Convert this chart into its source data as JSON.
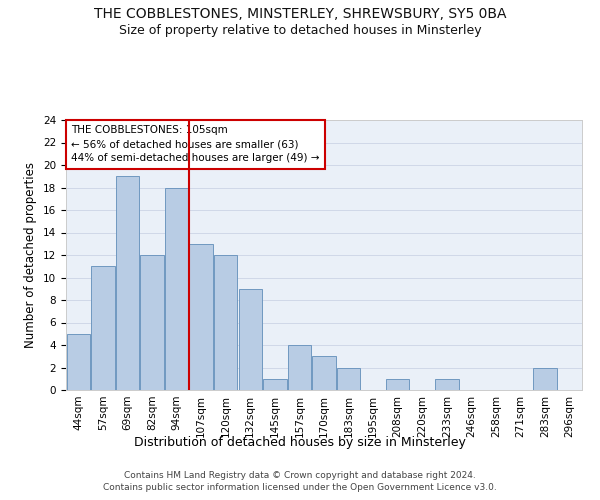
{
  "title": "THE COBBLESTONES, MINSTERLEY, SHREWSBURY, SY5 0BA",
  "subtitle": "Size of property relative to detached houses in Minsterley",
  "xlabel": "Distribution of detached houses by size in Minsterley",
  "ylabel": "Number of detached properties",
  "categories": [
    "44sqm",
    "57sqm",
    "69sqm",
    "82sqm",
    "94sqm",
    "107sqm",
    "120sqm",
    "132sqm",
    "145sqm",
    "157sqm",
    "170sqm",
    "183sqm",
    "195sqm",
    "208sqm",
    "220sqm",
    "233sqm",
    "246sqm",
    "258sqm",
    "271sqm",
    "283sqm",
    "296sqm"
  ],
  "values": [
    5,
    11,
    19,
    12,
    18,
    13,
    12,
    9,
    1,
    4,
    3,
    2,
    0,
    1,
    0,
    1,
    0,
    0,
    0,
    2,
    0
  ],
  "bar_color": "#b8cce4",
  "bar_edge_color": "#7098c0",
  "vline_index": 5,
  "vline_color": "#cc0000",
  "annotation_text": "THE COBBLESTONES: 105sqm\n← 56% of detached houses are smaller (63)\n44% of semi-detached houses are larger (49) →",
  "annotation_box_color": "#ffffff",
  "annotation_box_edge": "#cc0000",
  "ylim": [
    0,
    24
  ],
  "yticks": [
    0,
    2,
    4,
    6,
    8,
    10,
    12,
    14,
    16,
    18,
    20,
    22,
    24
  ],
  "footer_line1": "Contains HM Land Registry data © Crown copyright and database right 2024.",
  "footer_line2": "Contains public sector information licensed under the Open Government Licence v3.0.",
  "background_color": "#eaf0f8",
  "fig_background": "#ffffff",
  "title_fontsize": 10,
  "subtitle_fontsize": 9,
  "tick_fontsize": 7.5,
  "ylabel_fontsize": 8.5,
  "xlabel_fontsize": 9,
  "annotation_fontsize": 7.5,
  "footer_fontsize": 6.5
}
